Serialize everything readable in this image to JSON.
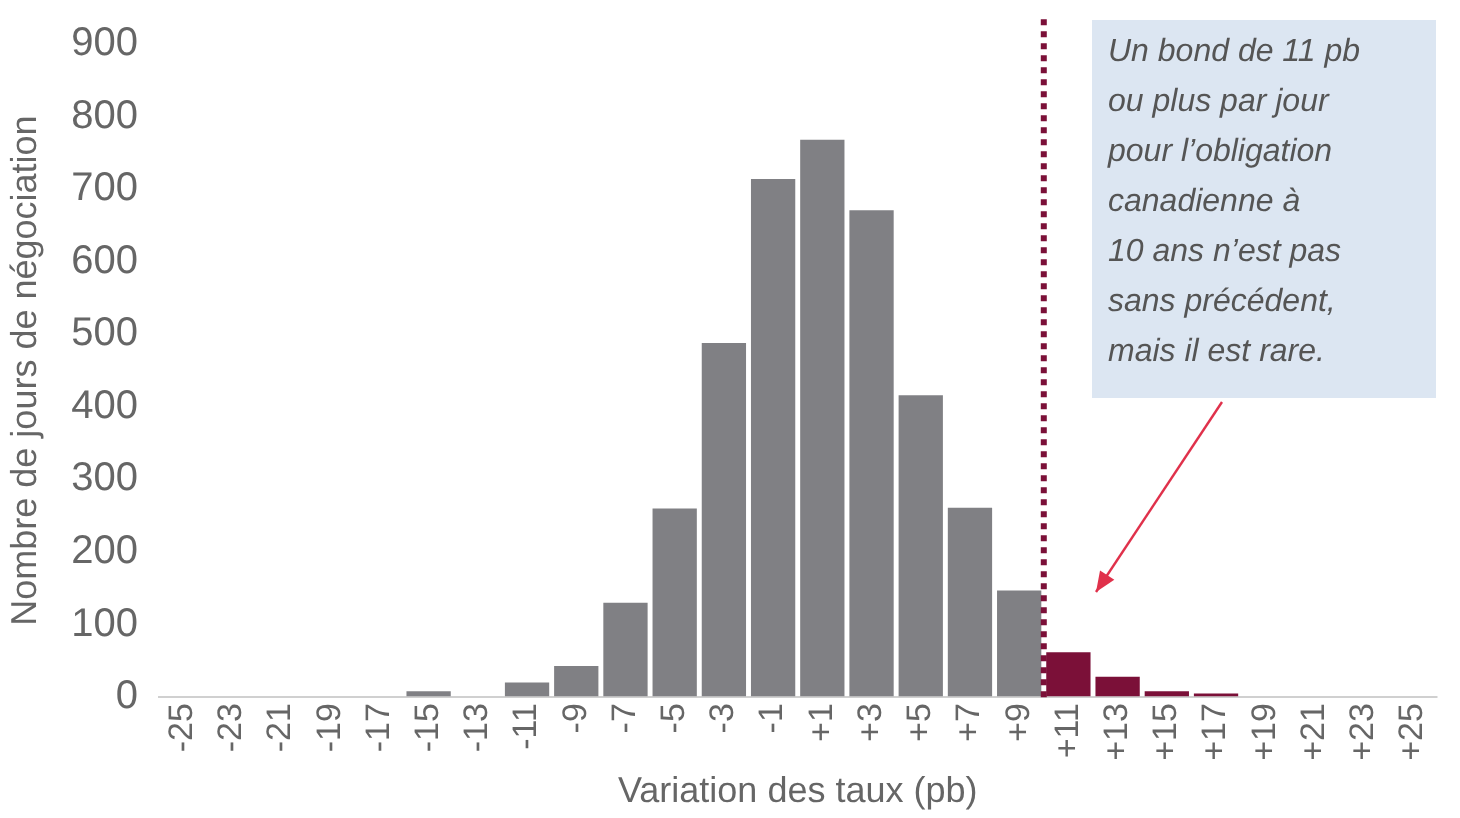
{
  "chart_data": {
    "type": "bar",
    "xlabel": "Variation des taux (pb)",
    "ylabel": "Nombre de jours de négociation",
    "x": [
      -25,
      -23,
      -21,
      -19,
      -17,
      -15,
      -13,
      -11,
      -9,
      -7,
      -5,
      -3,
      -1,
      1,
      3,
      5,
      7,
      9,
      11,
      13,
      15,
      17,
      19,
      21,
      23,
      25
    ],
    "values": [
      0,
      0,
      0,
      0,
      0,
      8,
      0,
      20,
      43,
      130,
      260,
      488,
      714,
      768,
      671,
      416,
      261,
      147,
      62,
      28,
      8,
      5,
      0,
      0,
      0,
      0
    ],
    "colors": [
      "#808084",
      "#808084",
      "#808084",
      "#808084",
      "#808084",
      "#808084",
      "#808084",
      "#808084",
      "#808084",
      "#808084",
      "#808084",
      "#808084",
      "#808084",
      "#808084",
      "#808084",
      "#808084",
      "#808084",
      "#808084",
      "#7b1038",
      "#7b1038",
      "#7b1038",
      "#7b1038",
      "#7b1038",
      "#7b1038",
      "#7b1038",
      "#7b1038"
    ],
    "xlim": [
      -26,
      26
    ],
    "xticks": [
      {
        "value": -25,
        "label": "-25"
      },
      {
        "value": -23,
        "label": "-23"
      },
      {
        "value": -21,
        "label": "-21"
      },
      {
        "value": -19,
        "label": "-19"
      },
      {
        "value": -17,
        "label": "-17"
      },
      {
        "value": -15,
        "label": "-15"
      },
      {
        "value": -13,
        "label": "-13"
      },
      {
        "value": -11,
        "label": "-11"
      },
      {
        "value": -9,
        "label": "-9"
      },
      {
        "value": -7,
        "label": "-7"
      },
      {
        "value": -5,
        "label": "-5"
      },
      {
        "value": -3,
        "label": "-3"
      },
      {
        "value": -1,
        "label": "-1"
      },
      {
        "value": 1,
        "label": "+1"
      },
      {
        "value": 3,
        "label": "+3"
      },
      {
        "value": 5,
        "label": "+5"
      },
      {
        "value": 7,
        "label": "+7"
      },
      {
        "value": 9,
        "label": "+9"
      },
      {
        "value": 11,
        "label": "+11"
      },
      {
        "value": 13,
        "label": "+13"
      },
      {
        "value": 15,
        "label": "+15"
      },
      {
        "value": 17,
        "label": "+17"
      },
      {
        "value": 19,
        "label": "+19"
      },
      {
        "value": 21,
        "label": "+21"
      },
      {
        "value": 23,
        "label": "+23"
      },
      {
        "value": 25,
        "label": "+25"
      }
    ],
    "ylim": [
      0,
      900
    ],
    "yticks": [
      0,
      100,
      200,
      300,
      400,
      500,
      600,
      700,
      800,
      900
    ],
    "grid": false,
    "legend": false,
    "ref_lines": [
      {
        "axis": "x",
        "value": 10,
        "color": "#7b1038",
        "line_style": "dotted"
      }
    ],
    "annotations": [
      "Un bond de 11 pb\nou plus par jour\npour l’obligation\ncanadienne à\n10 ans n’est pas\nsans précédent,\nmais il est rare."
    ]
  }
}
